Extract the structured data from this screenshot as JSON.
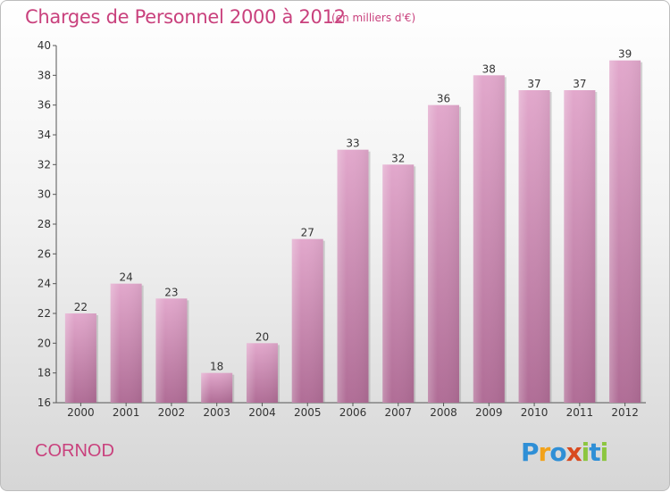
{
  "header": {
    "title": "Charges de Personnel 2000 à 2012",
    "subtitle": "(en milliers d'€)"
  },
  "footer": {
    "commune": "CORNOD",
    "logo": "Proxiti"
  },
  "colors": {
    "title": "#c9417d",
    "bar_top": "#e2a8cc",
    "bar_bottom": "#b06d96"
  },
  "chart_data": {
    "type": "bar",
    "title": "Charges de Personnel 2000 à 2012",
    "subtitle": "(en milliers d'€)",
    "categories": [
      "2000",
      "2001",
      "2002",
      "2003",
      "2004",
      "2005",
      "2006",
      "2007",
      "2008",
      "2009",
      "2010",
      "2011",
      "2012"
    ],
    "values": [
      22,
      24,
      23,
      18,
      20,
      27,
      33,
      32,
      36,
      38,
      37,
      37,
      39
    ],
    "data_labels": [
      "22",
      "24",
      "23",
      "18",
      "20",
      "27",
      "33",
      "32",
      "36",
      "38",
      "37",
      "37",
      "39"
    ],
    "ylim": [
      16,
      40
    ],
    "yticks": [
      16,
      18,
      20,
      22,
      24,
      26,
      28,
      30,
      32,
      34,
      36,
      38,
      40
    ],
    "xlabel": "",
    "ylabel": "",
    "grid": false,
    "legend": "none"
  }
}
